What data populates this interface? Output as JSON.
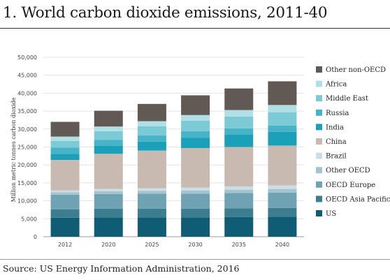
{
  "title": "1. World carbon dioxide emissions, 2011-40",
  "source": "Source: US Energy Information Administration, 2016",
  "chart_data": {
    "type": "bar",
    "stacked": true,
    "ylabel": "Million metric tonnes carbon dioxide",
    "ylim": [
      0,
      50000
    ],
    "yticks": [
      "0",
      "5,000",
      "10,000",
      "15,000",
      "20,000",
      "25,000",
      "30,000",
      "35,000",
      "40,000",
      "45,000",
      "50,000"
    ],
    "categories": [
      "2012",
      "2020",
      "2025",
      "2030",
      "2035",
      "2040"
    ],
    "legend_position": "right",
    "series": [
      {
        "name": "US",
        "color": "#0f5d75",
        "values": [
          5300,
          5400,
          5400,
          5400,
          5500,
          5600
        ]
      },
      {
        "name": "OECD Asia Pacific",
        "color": "#3c7d90",
        "values": [
          2300,
          2400,
          2400,
          2400,
          2400,
          2400
        ]
      },
      {
        "name": "OECD Europe",
        "color": "#6fa3b3",
        "values": [
          4100,
          4100,
          4200,
          4200,
          4300,
          4300
        ]
      },
      {
        "name": "Other OECD",
        "color": "#a3c4cf",
        "values": [
          700,
          800,
          800,
          900,
          900,
          1000
        ]
      },
      {
        "name": "Brazil",
        "color": "#ccdde3",
        "values": [
          500,
          600,
          700,
          800,
          900,
          1000
        ]
      },
      {
        "name": "China",
        "color": "#c8bab0",
        "values": [
          8500,
          9800,
          10500,
          11000,
          11000,
          11100
        ]
      },
      {
        "name": "India",
        "color": "#1aa0b8",
        "values": [
          1700,
          2200,
          2500,
          2900,
          3400,
          3800
        ]
      },
      {
        "name": "Russia",
        "color": "#46b3c6",
        "values": [
          1700,
          1700,
          1700,
          1800,
          1800,
          1800
        ]
      },
      {
        "name": "Middle East",
        "color": "#7ccad6",
        "values": [
          1900,
          2400,
          2600,
          2900,
          3300,
          3700
        ]
      },
      {
        "name": "Africa",
        "color": "#b1dfe6",
        "values": [
          1200,
          1300,
          1400,
          1600,
          1800,
          2000
        ]
      },
      {
        "name": "Other non-OECD",
        "color": "#615953",
        "values": [
          4100,
          4400,
          4800,
          5500,
          6000,
          6600
        ]
      }
    ]
  }
}
